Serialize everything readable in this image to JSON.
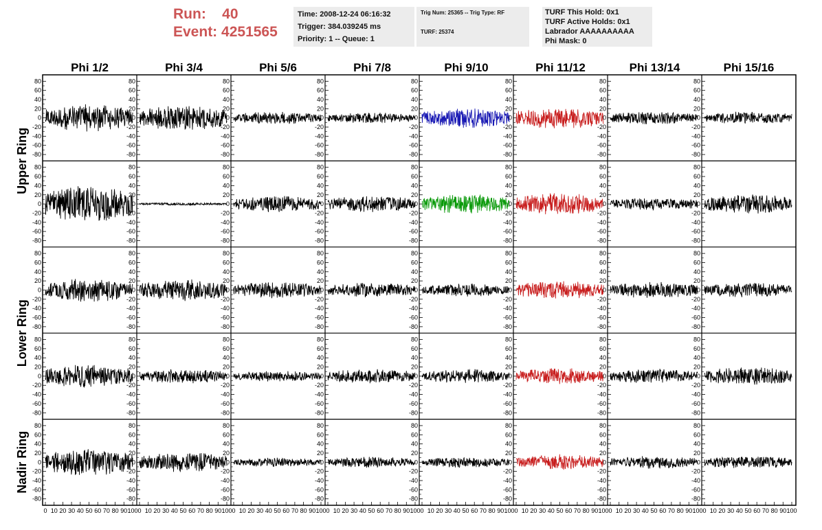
{
  "header": {
    "run_label": "Run:",
    "run_value": "40",
    "event_label": "Event:",
    "event_value": "4251565",
    "info_time": {
      "time": "Time: 2008-12-24 06:16:32",
      "trigger": "Trigger: 384.039245 ms",
      "priority": "Priority: 1 -- Queue: 1"
    },
    "info_trig": {
      "trig": "Trig Num: 25365 -- Trig Type: RF",
      "turf": "TURF: 25374"
    },
    "info_turf": {
      "this_hold": "TURF This Hold: 0x1",
      "active_holds": "TURF Active Holds: 0x1",
      "labrador": "Labrador AAAAAAAAAA",
      "phi_mask": "Phi Mask: 0"
    }
  },
  "chart_data": {
    "type": "line",
    "columns": [
      "Phi 1/2",
      "Phi 3/4",
      "Phi 5/6",
      "Phi 7/8",
      "Phi 9/10",
      "Phi 11/12",
      "Phi 13/14",
      "Phi 15/16"
    ],
    "ring_labels": [
      "Upper Ring",
      "Lower Ring",
      "Nadir Ring"
    ],
    "ylim": [
      -85,
      85
    ],
    "xlim": [
      0,
      100
    ],
    "y_ticks": [
      -80,
      -60,
      -40,
      -20,
      0,
      20,
      40,
      60,
      80
    ],
    "x_ticks": [
      0,
      10,
      20,
      30,
      40,
      50,
      60,
      70,
      80,
      90,
      100
    ],
    "colors": {
      "default": "#000000",
      "blue": "#1a1ab4",
      "green": "#0a9a0a",
      "red": "#c81e1e"
    },
    "amplitudes": [
      [
        30,
        28,
        14,
        12,
        22,
        24,
        14,
        14
      ],
      [
        40,
        3,
        18,
        18,
        22,
        24,
        14,
        22
      ],
      [
        26,
        24,
        18,
        16,
        14,
        20,
        18,
        16
      ],
      [
        26,
        16,
        12,
        16,
        16,
        18,
        16,
        20
      ],
      [
        30,
        22,
        10,
        12,
        12,
        18,
        14,
        14
      ]
    ],
    "trace_colors": [
      [
        "default",
        "default",
        "default",
        "default",
        "blue",
        "red",
        "default",
        "default"
      ],
      [
        "default",
        "default",
        "default",
        "default",
        "green",
        "red",
        "default",
        "default"
      ],
      [
        "default",
        "default",
        "default",
        "default",
        "default",
        "red",
        "default",
        "default"
      ],
      [
        "default",
        "default",
        "default",
        "default",
        "default",
        "red",
        "default",
        "default"
      ],
      [
        "default",
        "default",
        "default",
        "default",
        "default",
        "red",
        "default",
        "default"
      ]
    ]
  }
}
